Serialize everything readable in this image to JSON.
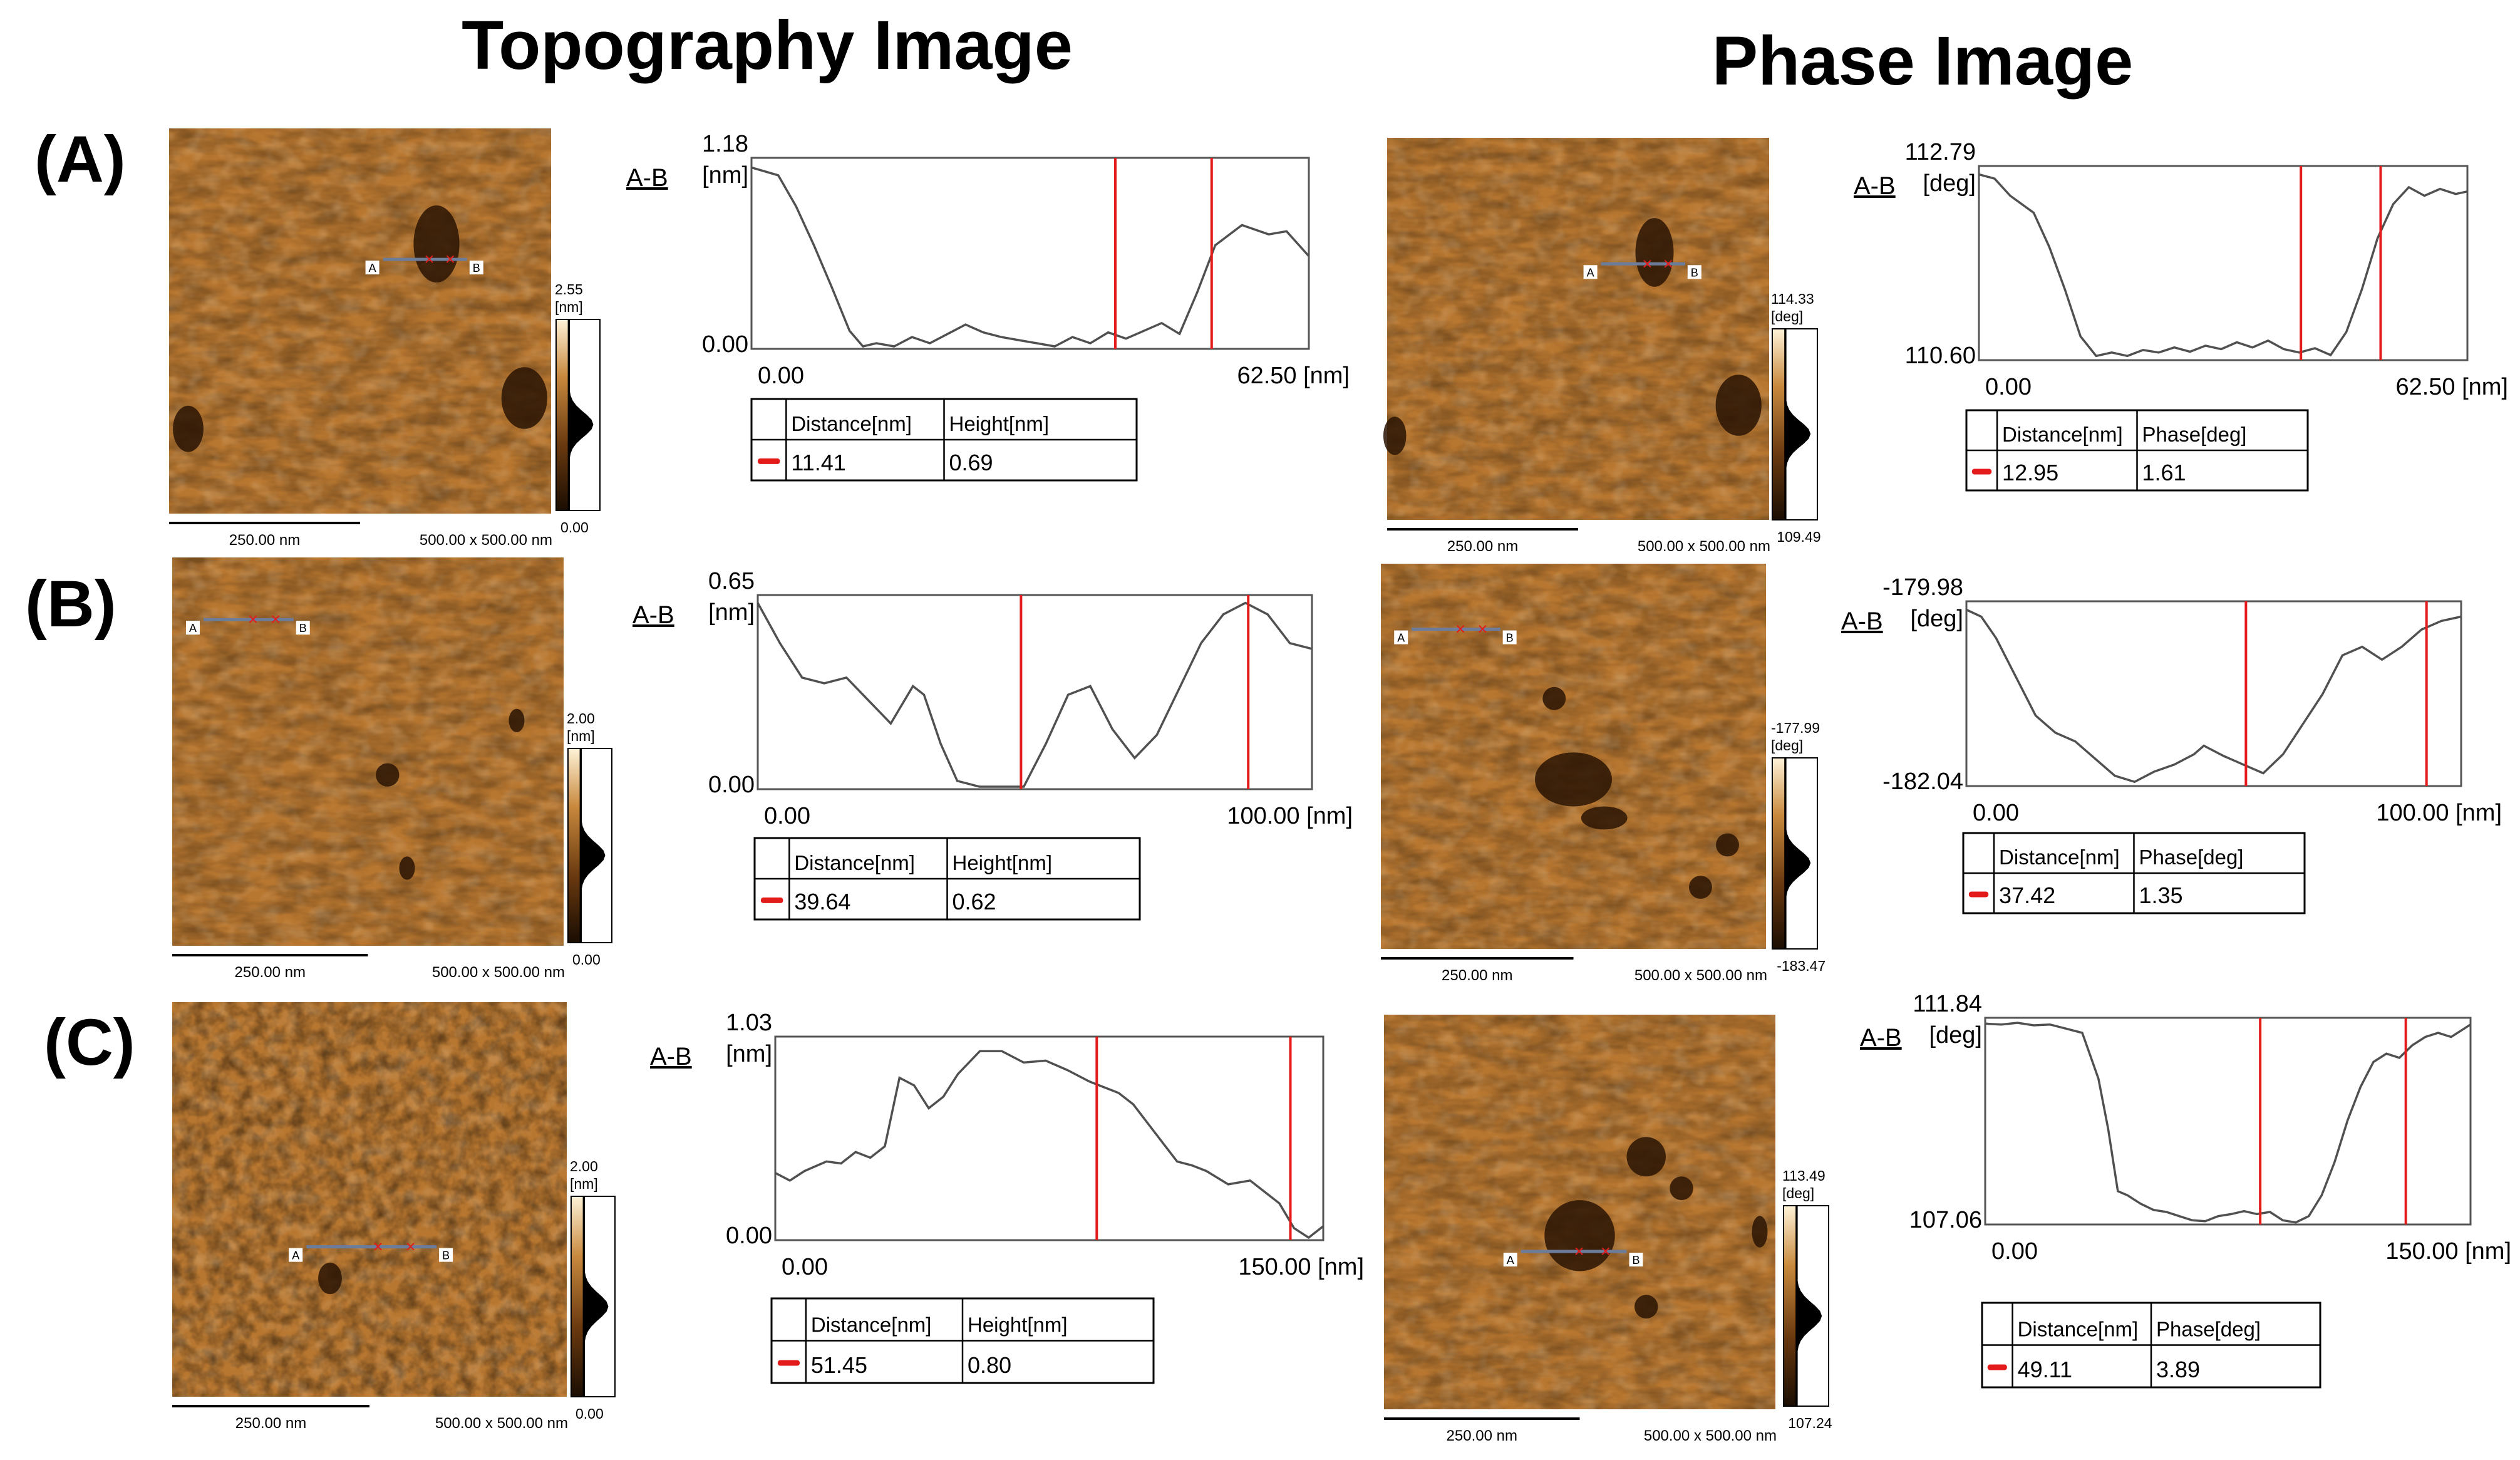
{
  "headers": {
    "topography": "Topography Image",
    "phase": "Phase Image"
  },
  "panels": [
    {
      "label": "(A)",
      "topo": {
        "scale_bar": "250.00 nm",
        "size": "500.00 x 500.00 nm",
        "colorbar": {
          "max": "2.55",
          "unit": "[nm]",
          "min": "0.00"
        },
        "profile": {
          "tag": "A-B",
          "ymax": "1.18",
          "yunit": "[nm]",
          "ymin": "0.00",
          "xmin": "0.00",
          "xmax": "62.50 [nm]",
          "table": {
            "col1": "Distance[nm]",
            "col2": "Height[nm]",
            "v1": "11.41",
            "v2": "0.69"
          },
          "points": [
            [
              0,
              1.15
            ],
            [
              3,
              1.1
            ],
            [
              5,
              0.9
            ],
            [
              7,
              0.65
            ],
            [
              9,
              0.38
            ],
            [
              11,
              0.1
            ],
            [
              12.5,
              0.0
            ],
            [
              14,
              0.02
            ],
            [
              16,
              0.0
            ],
            [
              18,
              0.06
            ],
            [
              20,
              0.02
            ],
            [
              22,
              0.08
            ],
            [
              24,
              0.14
            ],
            [
              26,
              0.09
            ],
            [
              28,
              0.06
            ],
            [
              30,
              0.04
            ],
            [
              32,
              0.02
            ],
            [
              34,
              0.0
            ],
            [
              36,
              0.06
            ],
            [
              38,
              0.02
            ],
            [
              40,
              0.09
            ],
            [
              42,
              0.05
            ],
            [
              44,
              0.1
            ],
            [
              46,
              0.15
            ],
            [
              48,
              0.08
            ],
            [
              50,
              0.35
            ],
            [
              52,
              0.65
            ],
            [
              55,
              0.78
            ],
            [
              58,
              0.72
            ],
            [
              60,
              0.74
            ],
            [
              62.5,
              0.58
            ]
          ],
          "cursors": [
            40.8,
            51.6
          ]
        }
      },
      "phase": {
        "scale_bar": "250.00 nm",
        "size": "500.00 x 500.00 nm",
        "colorbar": {
          "max": "114.33",
          "unit": "[deg]",
          "min": "109.49"
        },
        "profile": {
          "tag": "A-B",
          "ymax": "112.79",
          "yunit": "[deg]",
          "ymin": "110.60",
          "xmin": "0.00",
          "xmax": "62.50 [nm]",
          "table": {
            "col1": "Distance[nm]",
            "col2": "Phase[deg]",
            "v1": "12.95",
            "v2": "1.61"
          },
          "points": [
            [
              0,
              112.75
            ],
            [
              2,
              112.7
            ],
            [
              4,
              112.5
            ],
            [
              7,
              112.3
            ],
            [
              9,
              111.9
            ],
            [
              11,
              111.4
            ],
            [
              13,
              110.85
            ],
            [
              15,
              110.62
            ],
            [
              17,
              110.66
            ],
            [
              19,
              110.62
            ],
            [
              21,
              110.69
            ],
            [
              23,
              110.66
            ],
            [
              25,
              110.72
            ],
            [
              27,
              110.67
            ],
            [
              29,
              110.74
            ],
            [
              31,
              110.7
            ],
            [
              33,
              110.78
            ],
            [
              35,
              110.72
            ],
            [
              37,
              110.8
            ],
            [
              39,
              110.7
            ],
            [
              41,
              110.66
            ],
            [
              43,
              110.71
            ],
            [
              45,
              110.63
            ],
            [
              47,
              110.9
            ],
            [
              49,
              111.4
            ],
            [
              51,
              112.0
            ],
            [
              53,
              112.4
            ],
            [
              55,
              112.6
            ],
            [
              57,
              112.5
            ],
            [
              59,
              112.58
            ],
            [
              61,
              112.52
            ],
            [
              62.5,
              112.55
            ]
          ],
          "cursors": [
            41.2,
            51.4
          ]
        }
      }
    },
    {
      "label": "(B)",
      "topo": {
        "scale_bar": "250.00 nm",
        "size": "500.00 x 500.00 nm",
        "colorbar": {
          "max": "2.00",
          "unit": "[nm]",
          "min": "0.00"
        },
        "profile": {
          "tag": "A-B",
          "ymax": "0.65",
          "yunit": "[nm]",
          "ymin": "0.00",
          "xmin": "0.00",
          "xmax": "100.00 [nm]",
          "table": {
            "col1": "Distance[nm]",
            "col2": "Height[nm]",
            "v1": "39.64",
            "v2": "0.62"
          },
          "points": [
            [
              0,
              0.64
            ],
            [
              4,
              0.5
            ],
            [
              8,
              0.38
            ],
            [
              12,
              0.36
            ],
            [
              16,
              0.38
            ],
            [
              20,
              0.3
            ],
            [
              24,
              0.22
            ],
            [
              28,
              0.35
            ],
            [
              30,
              0.32
            ],
            [
              33,
              0.15
            ],
            [
              36,
              0.02
            ],
            [
              40,
              0.0
            ],
            [
              44,
              0.0
            ],
            [
              48,
              0.0
            ],
            [
              52,
              0.15
            ],
            [
              56,
              0.32
            ],
            [
              60,
              0.35
            ],
            [
              64,
              0.2
            ],
            [
              68,
              0.1
            ],
            [
              72,
              0.18
            ],
            [
              76,
              0.34
            ],
            [
              80,
              0.5
            ],
            [
              84,
              0.6
            ],
            [
              88,
              0.64
            ],
            [
              92,
              0.6
            ],
            [
              96,
              0.5
            ],
            [
              100,
              0.48
            ]
          ],
          "cursors": [
            47.5,
            88.5
          ]
        }
      },
      "phase": {
        "scale_bar": "250.00 nm",
        "size": "500.00 x 500.00 nm",
        "colorbar": {
          "max": "-177.99",
          "unit": "[deg]",
          "min": "-183.47"
        },
        "profile": {
          "tag": "A-B",
          "ymax": "-179.98",
          "yunit": "[deg]",
          "ymin": "-182.04",
          "xmin": "0.00",
          "xmax": "100.00 [nm]",
          "table": {
            "col1": "Distance[nm]",
            "col2": "Phase[deg]",
            "v1": "37.42",
            "v2": "1.35"
          },
          "points": [
            [
              0,
              -180.02
            ],
            [
              3,
              -180.1
            ],
            [
              6,
              -180.35
            ],
            [
              10,
              -180.8
            ],
            [
              14,
              -181.25
            ],
            [
              18,
              -181.45
            ],
            [
              22,
              -181.55
            ],
            [
              26,
              -181.75
            ],
            [
              30,
              -181.95
            ],
            [
              34,
              -182.02
            ],
            [
              38,
              -181.9
            ],
            [
              42,
              -181.82
            ],
            [
              46,
              -181.7
            ],
            [
              48,
              -181.6
            ],
            [
              52,
              -181.72
            ],
            [
              56,
              -181.82
            ],
            [
              60,
              -181.92
            ],
            [
              64,
              -181.7
            ],
            [
              68,
              -181.35
            ],
            [
              72,
              -181.0
            ],
            [
              76,
              -180.55
            ],
            [
              80,
              -180.45
            ],
            [
              84,
              -180.6
            ],
            [
              88,
              -180.45
            ],
            [
              92,
              -180.25
            ],
            [
              96,
              -180.15
            ],
            [
              100,
              -180.1
            ]
          ],
          "cursors": [
            56.5,
            93.0
          ]
        }
      }
    },
    {
      "label": "(C)",
      "topo": {
        "scale_bar": "250.00 nm",
        "size": "500.00 x 500.00 nm",
        "colorbar": {
          "max": "2.00",
          "unit": "[nm]",
          "min": "0.00"
        },
        "profile": {
          "tag": "A-B",
          "ymax": "1.03",
          "yunit": "[nm]",
          "ymin": "0.00",
          "xmin": "0.00",
          "xmax": "150.00 [nm]",
          "table": {
            "col1": "Distance[nm]",
            "col2": "Height[nm]",
            "v1": "51.45",
            "v2": "0.80"
          },
          "points": [
            [
              0,
              0.34
            ],
            [
              4,
              0.3
            ],
            [
              8,
              0.35
            ],
            [
              14,
              0.4
            ],
            [
              18,
              0.39
            ],
            [
              22,
              0.45
            ],
            [
              26,
              0.42
            ],
            [
              30,
              0.48
            ],
            [
              34,
              0.84
            ],
            [
              38,
              0.8
            ],
            [
              42,
              0.68
            ],
            [
              46,
              0.74
            ],
            [
              50,
              0.86
            ],
            [
              56,
              0.98
            ],
            [
              62,
              0.98
            ],
            [
              68,
              0.92
            ],
            [
              74,
              0.93
            ],
            [
              80,
              0.88
            ],
            [
              86,
              0.82
            ],
            [
              90,
              0.79
            ],
            [
              94,
              0.76
            ],
            [
              98,
              0.7
            ],
            [
              102,
              0.6
            ],
            [
              106,
              0.5
            ],
            [
              110,
              0.4
            ],
            [
              114,
              0.38
            ],
            [
              118,
              0.35
            ],
            [
              124,
              0.28
            ],
            [
              130,
              0.3
            ],
            [
              134,
              0.24
            ],
            [
              138,
              0.18
            ],
            [
              142,
              0.05
            ],
            [
              146,
              0.0
            ],
            [
              150,
              0.06
            ]
          ],
          "cursors": [
            88.0,
            141.0
          ]
        }
      },
      "phase": {
        "scale_bar": "250.00 nm",
        "size": "500.00 x 500.00 nm",
        "colorbar": {
          "max": "113.49",
          "unit": "[deg]",
          "min": "107.24"
        },
        "profile": {
          "tag": "A-B",
          "ymax": "111.84",
          "yunit": "[deg]",
          "ymin": "107.06",
          "xmin": "0.00",
          "xmax": "150.00 [nm]",
          "table": {
            "col1": "Distance[nm]",
            "col2": "Phase[deg]",
            "v1": "49.11",
            "v2": "3.89"
          },
          "points": [
            [
              0,
              111.82
            ],
            [
              5,
              111.8
            ],
            [
              10,
              111.84
            ],
            [
              15,
              111.78
            ],
            [
              20,
              111.8
            ],
            [
              25,
              111.7
            ],
            [
              30,
              111.6
            ],
            [
              35,
              110.5
            ],
            [
              38,
              109.3
            ],
            [
              41,
              107.8
            ],
            [
              44,
              107.7
            ],
            [
              48,
              107.5
            ],
            [
              52,
              107.35
            ],
            [
              56,
              107.3
            ],
            [
              60,
              107.2
            ],
            [
              64,
              107.1
            ],
            [
              68,
              107.08
            ],
            [
              72,
              107.2
            ],
            [
              76,
              107.25
            ],
            [
              80,
              107.32
            ],
            [
              84,
              107.25
            ],
            [
              88,
              107.3
            ],
            [
              92,
              107.1
            ],
            [
              96,
              107.05
            ],
            [
              100,
              107.2
            ],
            [
              104,
              107.7
            ],
            [
              108,
              108.5
            ],
            [
              112,
              109.5
            ],
            [
              116,
              110.3
            ],
            [
              120,
              110.9
            ],
            [
              124,
              111.1
            ],
            [
              128,
              111.0
            ],
            [
              132,
              111.3
            ],
            [
              136,
              111.5
            ],
            [
              140,
              111.6
            ],
            [
              144,
              111.5
            ],
            [
              148,
              111.7
            ],
            [
              150,
              111.8
            ]
          ],
          "cursors": [
            85.0,
            130.0
          ]
        }
      }
    }
  ],
  "colors": {
    "text": "#000000",
    "cursor": "#e31b1b",
    "profile_line": "#505050",
    "grid_border": "#000000",
    "afm_dark": "#3a1f05",
    "afm_mid": "#b87530",
    "afm_light": "#e8b56c"
  }
}
